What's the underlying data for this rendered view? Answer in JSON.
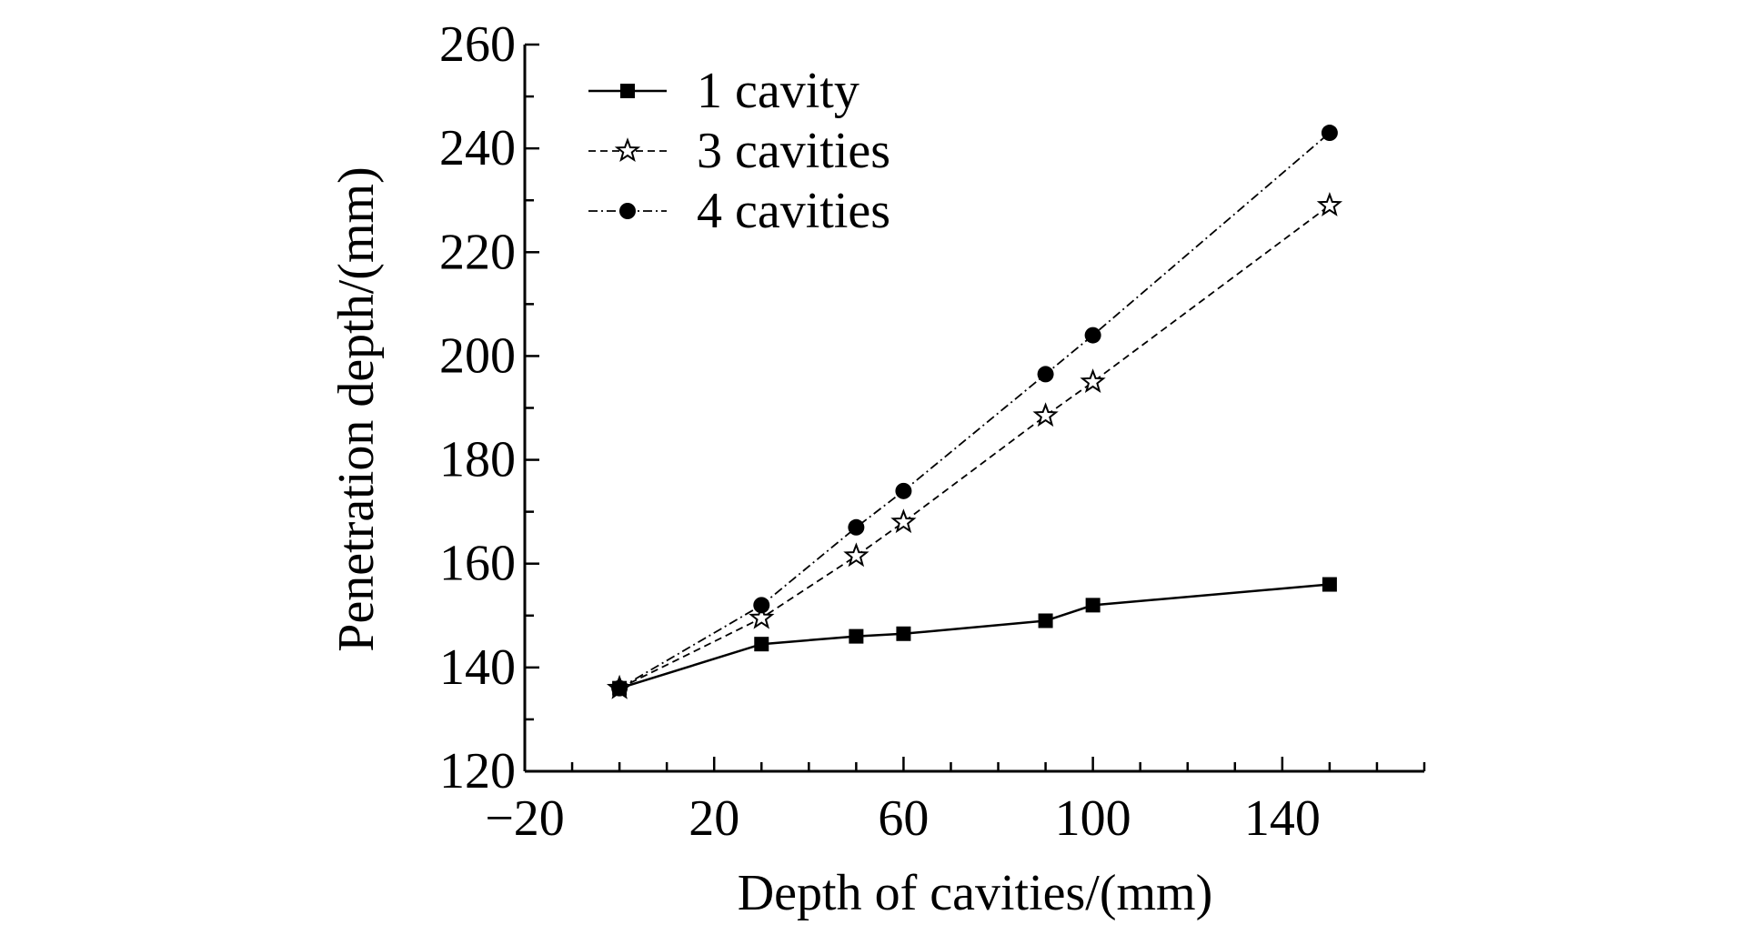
{
  "chart_data": {
    "type": "line",
    "title": "",
    "xlabel": "Depth of cavities/(mm)",
    "ylabel": "Penetration depth/(mm)",
    "xlim": [
      -20,
      170
    ],
    "ylim": [
      120,
      260
    ],
    "xticks": [
      -20,
      20,
      60,
      100,
      140
    ],
    "xtick_labels": [
      "−20",
      "20",
      "60",
      "100",
      "140"
    ],
    "yticks": [
      120,
      140,
      160,
      180,
      200,
      220,
      240,
      260
    ],
    "ytick_labels": [
      "120",
      "140",
      "160",
      "180",
      "200",
      "220",
      "240",
      "260"
    ],
    "grid": false,
    "legend_position": "top-left",
    "series": [
      {
        "name": "1 cavity",
        "marker": "square",
        "dash": "solid",
        "x": [
          0,
          30,
          50,
          60,
          90,
          100,
          150
        ],
        "y": [
          136,
          144.5,
          146,
          146.5,
          149,
          152,
          156
        ]
      },
      {
        "name": "3 cavities",
        "marker": "star",
        "dash": "dashed",
        "x": [
          0,
          30,
          50,
          60,
          90,
          100,
          150
        ],
        "y": [
          136,
          149.5,
          161.5,
          168,
          188.5,
          195,
          229
        ]
      },
      {
        "name": "4 cavities",
        "marker": "circle",
        "dash": "dashdot",
        "x": [
          0,
          30,
          50,
          60,
          90,
          100,
          150
        ],
        "y": [
          136,
          152,
          167,
          174,
          196.5,
          204,
          243
        ]
      }
    ]
  }
}
